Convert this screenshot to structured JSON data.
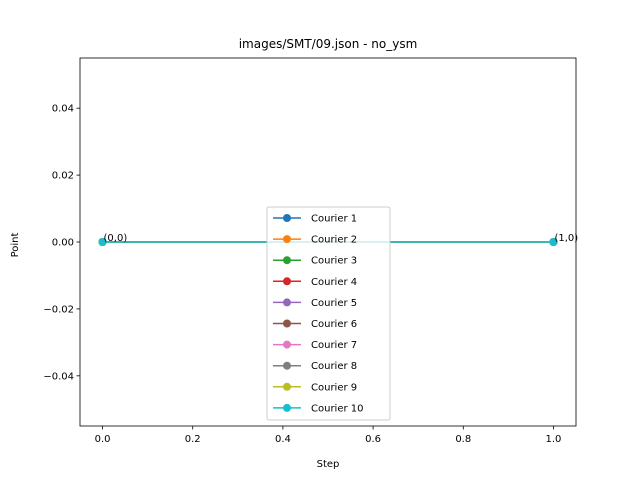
{
  "chart_data": {
    "type": "line",
    "title": "images/SMT/09.json - no_ysm",
    "xlabel": "Step",
    "ylabel": "Point",
    "xlim": [
      -0.05,
      1.05
    ],
    "ylim": [
      -0.055,
      0.055
    ],
    "x_ticks": [
      0.0,
      0.2,
      0.4,
      0.6,
      0.8,
      1.0
    ],
    "x_tick_labels": [
      "0.0",
      "0.2",
      "0.4",
      "0.6",
      "0.8",
      "1.0"
    ],
    "y_ticks": [
      -0.04,
      -0.02,
      0.0,
      0.02,
      0.04
    ],
    "y_tick_labels": [
      "−0.04",
      "−0.02",
      "0.00",
      "0.02",
      "0.04"
    ],
    "grid": false,
    "legend_position": "bottom-center",
    "series": [
      {
        "name": "Courier 1",
        "color": "#1f77b4",
        "x": [
          0,
          1
        ],
        "y": [
          0,
          0
        ]
      },
      {
        "name": "Courier 2",
        "color": "#ff7f0e",
        "x": [
          0,
          1
        ],
        "y": [
          0,
          0
        ]
      },
      {
        "name": "Courier 3",
        "color": "#2ca02c",
        "x": [
          0,
          1
        ],
        "y": [
          0,
          0
        ]
      },
      {
        "name": "Courier 4",
        "color": "#d62728",
        "x": [
          0,
          1
        ],
        "y": [
          0,
          0
        ]
      },
      {
        "name": "Courier 5",
        "color": "#9467bd",
        "x": [
          0,
          1
        ],
        "y": [
          0,
          0
        ]
      },
      {
        "name": "Courier 6",
        "color": "#8c564b",
        "x": [
          0,
          1
        ],
        "y": [
          0,
          0
        ]
      },
      {
        "name": "Courier 7",
        "color": "#e377c2",
        "x": [
          0,
          1
        ],
        "y": [
          0,
          0
        ]
      },
      {
        "name": "Courier 8",
        "color": "#7f7f7f",
        "x": [
          0,
          1
        ],
        "y": [
          0,
          0
        ]
      },
      {
        "name": "Courier 9",
        "color": "#bcbd22",
        "x": [
          0,
          1
        ],
        "y": [
          0,
          0
        ]
      },
      {
        "name": "Courier 10",
        "color": "#17becf",
        "x": [
          0,
          1
        ],
        "y": [
          0,
          0
        ]
      }
    ],
    "annotations": [
      {
        "text": "(0,0)",
        "x": 0,
        "y": 0
      },
      {
        "text": "(1,0)",
        "x": 1,
        "y": 0
      }
    ]
  }
}
